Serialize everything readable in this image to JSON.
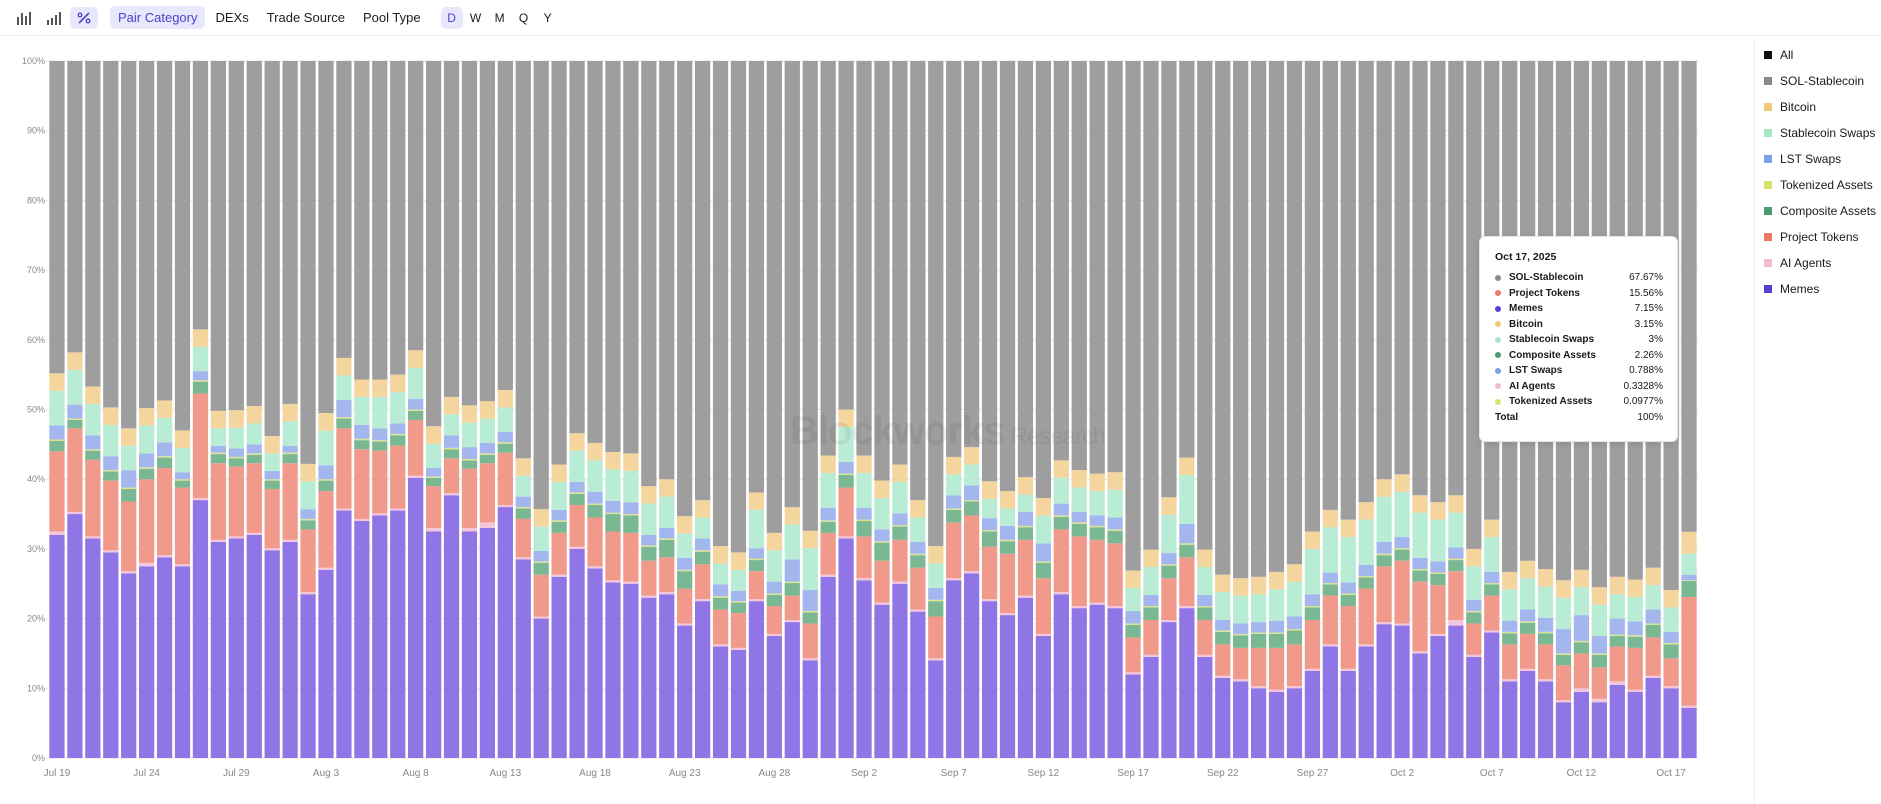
{
  "toolbar": {
    "chart_icons": [
      {
        "icon": "bar-chart-icon",
        "active": false
      },
      {
        "icon": "stepped-bar-icon",
        "active": false
      },
      {
        "icon": "percent-icon",
        "active": true
      }
    ],
    "groupings": [
      {
        "label": "Pair Category",
        "active": true
      },
      {
        "label": "DEXs",
        "active": false
      },
      {
        "label": "Trade Source",
        "active": false
      },
      {
        "label": "Pool Type",
        "active": false
      }
    ],
    "periods": [
      {
        "label": "D",
        "active": true
      },
      {
        "label": "W",
        "active": false
      },
      {
        "label": "M",
        "active": false
      },
      {
        "label": "Q",
        "active": false
      },
      {
        "label": "Y",
        "active": false
      }
    ]
  },
  "watermark": {
    "text": "Blockworks",
    "sub": "Research"
  },
  "legend": [
    {
      "label": "All",
      "color": "#111111"
    },
    {
      "label": "SOL-Stablecoin",
      "color": "#8a8a8a"
    },
    {
      "label": "Bitcoin",
      "color": "#f0c97a"
    },
    {
      "label": "Stablecoin Swaps",
      "color": "#a8e6c8"
    },
    {
      "label": "LST Swaps",
      "color": "#7f9fe6"
    },
    {
      "label": "Tokenized Assets",
      "color": "#d9e26a"
    },
    {
      "label": "Composite Assets",
      "color": "#4e9a72"
    },
    {
      "label": "Project Tokens",
      "color": "#ef7a6a"
    },
    {
      "label": "AI Agents",
      "color": "#f0bcd6"
    },
    {
      "label": "Memes",
      "color": "#5b3fd6"
    }
  ],
  "tooltip": {
    "date": "Oct 17, 2025",
    "rows": [
      {
        "name": "SOL-Stablecoin",
        "value": "67.67%",
        "color": "#8a8a8a"
      },
      {
        "name": "Project Tokens",
        "value": "15.56%",
        "color": "#ef7a6a"
      },
      {
        "name": "Memes",
        "value": "7.15%",
        "color": "#5b3fd6"
      },
      {
        "name": "Bitcoin",
        "value": "3.15%",
        "color": "#f0c97a"
      },
      {
        "name": "Stablecoin Swaps",
        "value": "3%",
        "color": "#a8e6c8"
      },
      {
        "name": "Composite Assets",
        "value": "2.26%",
        "color": "#4e9a72"
      },
      {
        "name": "LST Swaps",
        "value": "0.788%",
        "color": "#7f9fe6"
      },
      {
        "name": "AI Agents",
        "value": "0.3328%",
        "color": "#f0bcd6"
      },
      {
        "name": "Tokenized Assets",
        "value": "0.0977%",
        "color": "#d9e26a"
      }
    ],
    "total_label": "Total",
    "total_value": "100%"
  },
  "chart_data": {
    "type": "bar",
    "stacked": true,
    "normalized_percent": true,
    "ylim": [
      0,
      100
    ],
    "y_ticks": [
      "0%",
      "10%",
      "20%",
      "30%",
      "40%",
      "50%",
      "60%",
      "70%",
      "80%",
      "90%",
      "100%"
    ],
    "x_tick_labels": [
      {
        "label": "Jul 19",
        "index": 0
      },
      {
        "label": "Jul 24",
        "index": 5
      },
      {
        "label": "Jul 29",
        "index": 10
      },
      {
        "label": "Aug 3",
        "index": 15
      },
      {
        "label": "Aug 8",
        "index": 20
      },
      {
        "label": "Aug 13",
        "index": 25
      },
      {
        "label": "Aug 18",
        "index": 30
      },
      {
        "label": "Aug 23",
        "index": 35
      },
      {
        "label": "Aug 28",
        "index": 40
      },
      {
        "label": "Sep 2",
        "index": 45
      },
      {
        "label": "Sep 7",
        "index": 50
      },
      {
        "label": "Sep 12",
        "index": 55
      },
      {
        "label": "Sep 17",
        "index": 60
      },
      {
        "label": "Sep 22",
        "index": 65
      },
      {
        "label": "Sep 27",
        "index": 70
      },
      {
        "label": "Oct 2",
        "index": 75
      },
      {
        "label": "Oct 7",
        "index": 80
      },
      {
        "label": "Oct 12",
        "index": 85
      },
      {
        "label": "Oct 17",
        "index": 90
      }
    ],
    "grid": true,
    "legend_position": "right",
    "series_order_bottom_to_top": [
      "Memes",
      "AI Agents",
      "Project Tokens",
      "Composite Assets",
      "Tokenized Assets",
      "LST Swaps",
      "Stablecoin Swaps",
      "Bitcoin",
      "SOL-Stablecoin"
    ],
    "series_colors": {
      "Memes": "#8f75e6",
      "AI Agents": "#f4c6dc",
      "Project Tokens": "#f19a8b",
      "Composite Assets": "#7ab893",
      "Tokenized Assets": "#dfe48f",
      "LST Swaps": "#a3b7ee",
      "Stablecoin Swaps": "#b9ecd5",
      "Bitcoin": "#f3d59d",
      "SOL-Stablecoin": "#9e9e9e"
    },
    "series": [
      {
        "name": "Memes",
        "values": [
          32,
          35,
          31.5,
          29.5,
          26.5,
          27.5,
          28.8,
          27.5,
          37,
          31,
          31.5,
          32,
          29.8,
          31,
          23.5,
          27,
          35.5,
          34,
          34.8,
          35.5,
          40.2,
          32.5,
          37.7,
          32.5,
          33,
          36,
          28.5,
          20,
          26,
          30,
          27.2,
          25.2,
          25,
          23,
          23.5,
          19,
          22.5,
          16,
          15.5,
          22.5,
          17.5,
          19.5,
          14,
          26,
          31.5,
          25.5,
          22,
          25,
          21,
          14,
          25.5,
          26.5,
          22.5,
          20.5,
          23,
          17.5,
          23.5,
          21.5,
          22,
          21.5,
          12,
          14.5,
          19.5,
          21.5,
          14.5,
          11.5,
          11,
          10,
          9.5,
          10,
          12.5,
          16,
          12.5,
          16,
          19.2,
          19,
          15,
          17.5,
          19,
          14.5,
          18,
          11,
          12.5,
          11,
          8,
          9.5,
          8,
          10.5,
          9.5,
          11.5,
          10,
          7.2
        ]
      },
      {
        "name": "AI Agents",
        "values": [
          0.5,
          0.3,
          0.3,
          0.3,
          0.3,
          0.5,
          0.3,
          0.3,
          0.3,
          0.3,
          0.3,
          0.3,
          0.3,
          0.3,
          0.3,
          0.3,
          0.3,
          0.3,
          0.3,
          0.3,
          0.3,
          0.5,
          0.3,
          0.5,
          0.8,
          0.3,
          0.3,
          0.3,
          0.3,
          0.3,
          0.3,
          0.3,
          0.3,
          0.3,
          0.3,
          0.3,
          0.3,
          0.3,
          0.3,
          0.3,
          0.3,
          0.3,
          0.3,
          0.3,
          0.3,
          0.3,
          0.3,
          0.3,
          0.3,
          0.3,
          0.3,
          0.3,
          0.3,
          0.3,
          0.3,
          0.3,
          0.3,
          0.3,
          0.3,
          0.3,
          0.3,
          0.3,
          0.3,
          0.3,
          0.3,
          0.3,
          0.3,
          0.3,
          0.3,
          0.3,
          0.3,
          0.3,
          0.3,
          0.3,
          0.3,
          0.3,
          0.3,
          0.3,
          0.8,
          0.3,
          0.3,
          0.3,
          0.3,
          0.3,
          0.3,
          0.5,
          0.5,
          0.5,
          0.3,
          0.3,
          0.3,
          0.3
        ]
      },
      {
        "name": "Project Tokens",
        "values": [
          11.5,
          12,
          11,
          10,
          10,
          12,
          12.5,
          11,
          15,
          11,
          10,
          10,
          8.5,
          11,
          9,
          11,
          11.5,
          10,
          9,
          9,
          8,
          6,
          5,
          8.5,
          8.5,
          7.5,
          5.5,
          6,
          6,
          6,
          7,
          7,
          7,
          5,
          5,
          5,
          5,
          5,
          5,
          4,
          4,
          3.5,
          5,
          6,
          7,
          6,
          6,
          6,
          6,
          6,
          8,
          8,
          7.5,
          8.5,
          8,
          8,
          9,
          10,
          9,
          9,
          5,
          5,
          6,
          7,
          5,
          4.5,
          4.5,
          5.5,
          6,
          6,
          7,
          7,
          9,
          8,
          8,
          9,
          10,
          7,
          7,
          4.5,
          5,
          5,
          5,
          5,
          5,
          5,
          4.5,
          5,
          6,
          5.5,
          4,
          15.6
        ]
      },
      {
        "name": "Composite Assets",
        "values": [
          1.5,
          1.2,
          1.3,
          1.3,
          1.8,
          1.5,
          1.5,
          1,
          1.7,
          1.3,
          1.2,
          1.2,
          1.2,
          1.3,
          1.3,
          1.5,
          1.4,
          1.3,
          1.3,
          1.5,
          1.3,
          1.2,
          1.3,
          1.2,
          1.2,
          1.3,
          1.5,
          1.7,
          1.6,
          1.6,
          1.8,
          2.5,
          2.5,
          2,
          2.5,
          2.5,
          1.8,
          1.7,
          1.5,
          1.6,
          1.6,
          1.8,
          1.6,
          1.6,
          1.8,
          2.2,
          2.6,
          1.9,
          1.8,
          2.2,
          1.8,
          2,
          2.2,
          1.8,
          1.8,
          2.2,
          1.8,
          1.8,
          1.8,
          1.8,
          1.8,
          1.8,
          1.8,
          1.8,
          1.8,
          1.8,
          1.8,
          2,
          2,
          2,
          1.8,
          1.6,
          1.6,
          1.6,
          1.6,
          1.6,
          1.6,
          1.6,
          1.6,
          1.6,
          1.6,
          1.6,
          1.6,
          1.6,
          1.5,
          1.6,
          1.8,
          1.5,
          1.6,
          1.8,
          2,
          2.3
        ]
      },
      {
        "name": "Tokenized Assets",
        "values": [
          0.2,
          0.2,
          0.2,
          0.2,
          0.2,
          0.2,
          0.2,
          0.2,
          0.2,
          0.2,
          0.2,
          0.2,
          0.2,
          0.2,
          0.2,
          0.2,
          0.2,
          0.2,
          0.2,
          0.2,
          0.2,
          0.2,
          0.2,
          0.2,
          0.2,
          0.2,
          0.2,
          0.2,
          0.2,
          0.2,
          0.2,
          0.2,
          0.2,
          0.2,
          0.2,
          0.2,
          0.2,
          0.2,
          0.2,
          0.2,
          0.2,
          0.2,
          0.2,
          0.2,
          0.2,
          0.2,
          0.2,
          0.2,
          0.2,
          0.2,
          0.2,
          0.2,
          0.2,
          0.2,
          0.2,
          0.2,
          0.2,
          0.2,
          0.2,
          0.2,
          0.2,
          0.2,
          0.2,
          0.2,
          0.2,
          0.2,
          0.2,
          0.2,
          0.2,
          0.2,
          0.2,
          0.2,
          0.2,
          0.2,
          0.2,
          0.2,
          0.2,
          0.2,
          0.2,
          0.2,
          0.2,
          0.2,
          0.2,
          0.2,
          0.2,
          0.2,
          0.2,
          0.2,
          0.2,
          0.2,
          0.2,
          0.1
        ]
      },
      {
        "name": "LST Swaps",
        "values": [
          2,
          2,
          2,
          2,
          2.5,
          2,
          2,
          1,
          1.3,
          1,
          1.2,
          1.3,
          1.2,
          1,
          1.4,
          2,
          2.5,
          2,
          1.7,
          1.5,
          1.5,
          1.2,
          1.8,
          1.7,
          1.5,
          1.5,
          1.5,
          1.5,
          1.5,
          1.5,
          1.7,
          1.7,
          1.7,
          1.5,
          1.5,
          1.7,
          1.7,
          1.7,
          1.5,
          1.5,
          1.7,
          3.2,
          3,
          1.8,
          1.7,
          1.7,
          1.7,
          1.7,
          1.7,
          1.7,
          1.9,
          2.1,
          1.7,
          2,
          2,
          2.6,
          1.7,
          1.5,
          1.5,
          1.7,
          1.8,
          1.6,
          1.6,
          2.8,
          1.6,
          1.5,
          1.5,
          1.5,
          1.7,
          1.8,
          1.7,
          1.5,
          1.6,
          1.6,
          1.7,
          1.6,
          1.6,
          1.6,
          1.6,
          1.6,
          1.6,
          1.6,
          1.7,
          2,
          3.5,
          3.7,
          2.5,
          2.3,
          2,
          2,
          1.6,
          0.8
        ]
      },
      {
        "name": "Stablecoin Swaps",
        "values": [
          5,
          5,
          4.5,
          4.5,
          3.5,
          4,
          3.5,
          3.5,
          3.5,
          2.5,
          3,
          3,
          2.5,
          3.5,
          4,
          5,
          3.5,
          4,
          4.5,
          4.5,
          4.5,
          3.5,
          3,
          3.5,
          3.5,
          3.5,
          3,
          3.5,
          4,
          4.5,
          4.5,
          4.5,
          4.5,
          4.5,
          4.5,
          3.5,
          3,
          3,
          3,
          5.5,
          4.5,
          5,
          6,
          5,
          5,
          5,
          4.5,
          4.5,
          3.5,
          3.5,
          3,
          3,
          2.8,
          2.5,
          2.5,
          4,
          3.7,
          3.5,
          3.5,
          4,
          3.3,
          4,
          5.5,
          7,
          4,
          4,
          4,
          4,
          4.5,
          5,
          6.5,
          6.5,
          6.5,
          6.5,
          6.5,
          6.5,
          6.5,
          6,
          5,
          4.8,
          5,
          4.5,
          4.5,
          4.5,
          4.5,
          4,
          4.5,
          3.5,
          3.5,
          3.5,
          3.5,
          3
        ]
      },
      {
        "name": "Bitcoin",
        "values": [
          2.5,
          2.5,
          2.5,
          2.5,
          2.5,
          2.5,
          2.5,
          2.5,
          2.5,
          2.5,
          2.5,
          2.5,
          2.5,
          2.5,
          2.5,
          2.5,
          2.5,
          2.5,
          2.5,
          2.5,
          2.5,
          2.5,
          2.5,
          2.5,
          2.5,
          2.5,
          2.5,
          2.5,
          2.5,
          2.5,
          2.5,
          2.5,
          2.5,
          2.5,
          2.5,
          2.5,
          2.5,
          2.5,
          2.5,
          2.5,
          2.5,
          2.5,
          2.5,
          2.5,
          2.5,
          2.5,
          2.5,
          2.5,
          2.5,
          2.5,
          2.5,
          2.5,
          2.5,
          2.5,
          2.5,
          2.5,
          2.5,
          2.5,
          2.5,
          2.5,
          2.5,
          2.5,
          2.5,
          2.5,
          2.5,
          2.5,
          2.5,
          2.5,
          2.5,
          2.5,
          2.5,
          2.5,
          2.5,
          2.5,
          2.5,
          2.5,
          2.5,
          2.5,
          2.5,
          2.5,
          2.5,
          2.5,
          2.5,
          2.5,
          2.5,
          2.5,
          2.5,
          2.5,
          2.5,
          2.5,
          2.5,
          3.15
        ]
      }
    ],
    "sol_stablecoin_note": "SOL-Stablecoin fills the remainder to 100%"
  }
}
